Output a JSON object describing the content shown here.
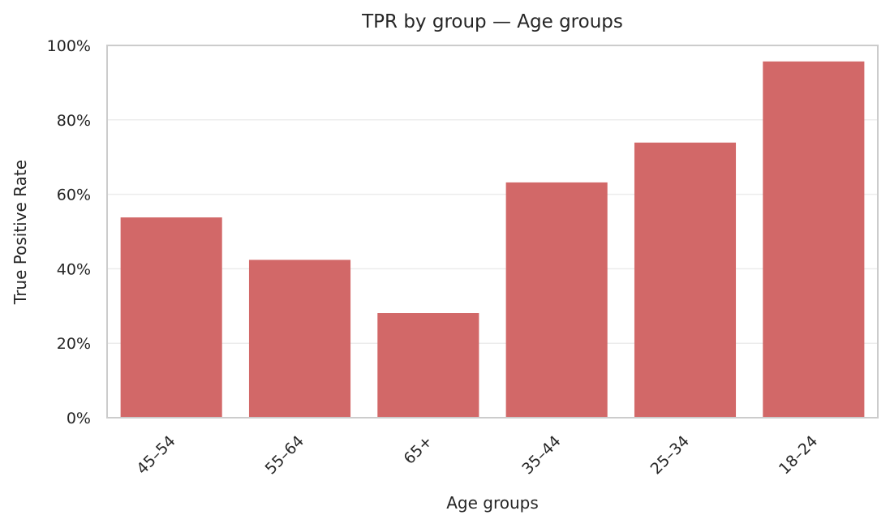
{
  "chart_data": {
    "type": "bar",
    "title": "TPR by group — Age groups",
    "xlabel": "Age groups",
    "ylabel": "True Positive Rate",
    "categories": [
      "45–54",
      "55–64",
      "65+",
      "35–44",
      "25–34",
      "18–24"
    ],
    "values": [
      0.538,
      0.424,
      0.281,
      0.632,
      0.739,
      0.957
    ],
    "ylim": [
      0,
      1
    ],
    "yticks": [
      0,
      0.2,
      0.4,
      0.6,
      0.8,
      1.0
    ],
    "ytick_labels": [
      "0%",
      "20%",
      "40%",
      "60%",
      "80%",
      "100%"
    ],
    "bar_color": "#d26868",
    "grid": true,
    "grid_axis": "y",
    "legend": "none"
  }
}
